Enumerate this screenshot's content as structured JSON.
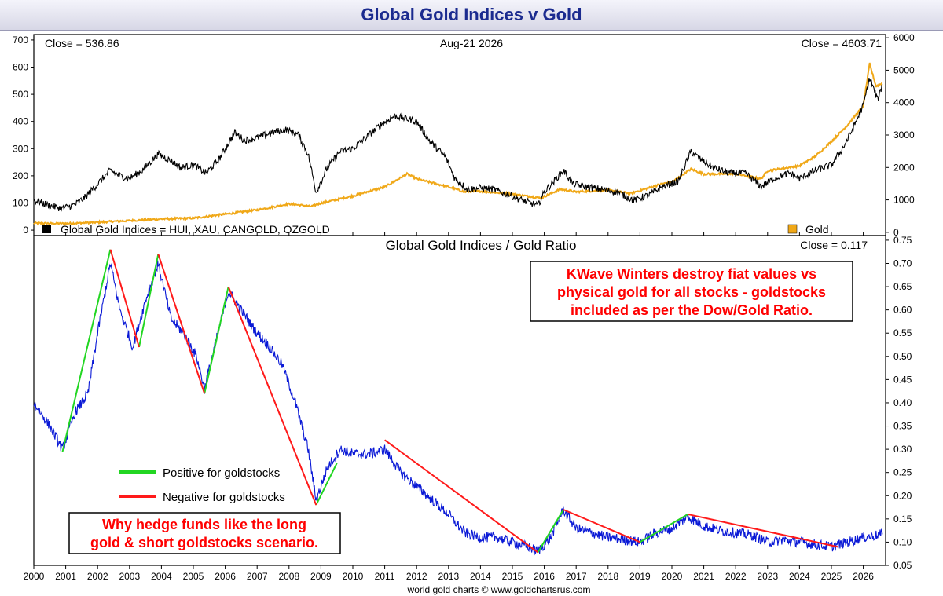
{
  "title": "Global Gold Indices v Gold",
  "footer": "world gold charts © www.goldchartsrus.com",
  "colors": {
    "indices": "#000000",
    "gold": "#f0a818",
    "ratio": "#0a19d6",
    "positive": "#22d622",
    "negative": "#ff1a1a",
    "title": "#1b2b8f",
    "annotation": "#ff0000"
  },
  "top_panel": {
    "close_left": "Close = 536.86",
    "date": "Aug-21  2026",
    "close_right": "Close = 4603.71",
    "legend_indices": "Global Gold Indices = HUI, XAU, CANGOLD, OZGOLD",
    "legend_gold": "Gold"
  },
  "bottom_panel": {
    "title": "Global Gold Indices  /  Gold Ratio",
    "close": "Close = 0.117",
    "annotation_top": [
      "KWave Winters destroy fiat values vs",
      "physical gold for all stocks - goldstocks",
      "included as per the Dow/Gold Ratio."
    ],
    "annotation_bottom": [
      "Why hedge funds like the long",
      "gold & short goldstocks scenario."
    ],
    "legend_positive": "Positive for goldstocks",
    "legend_negative": "Negative for goldstocks"
  },
  "chart_data": [
    {
      "type": "line",
      "title": "Global Gold Indices v Gold",
      "x_axis": {
        "range": [
          2000,
          2026.7
        ],
        "ticks": [
          "2000",
          "2001",
          "2002",
          "2003",
          "2004",
          "2005",
          "2006",
          "2007",
          "2008",
          "2009",
          "2010",
          "2011",
          "2012",
          "2013",
          "2014",
          "2015",
          "2016",
          "2017",
          "2018",
          "2019",
          "2020",
          "2021",
          "2022",
          "2023",
          "2024",
          "2025",
          "2026"
        ]
      },
      "y_left": {
        "range": [
          -20,
          720
        ],
        "ticks": [
          0,
          100,
          200,
          300,
          400,
          500,
          600,
          700
        ]
      },
      "y_right": {
        "range": [
          -100,
          6100
        ],
        "ticks": [
          0,
          1000,
          2000,
          3000,
          4000,
          5000,
          6000
        ]
      },
      "series": [
        {
          "name": "Global Gold Indices = HUI, XAU, CANGOLD, OZGOLD",
          "axis": "left",
          "points": [
            [
              2000,
              110
            ],
            [
              2000.5,
              90
            ],
            [
              2000.9,
              80
            ],
            [
              2001.3,
              95
            ],
            [
              2001.6,
              120
            ],
            [
              2002.0,
              170
            ],
            [
              2002.4,
              220
            ],
            [
              2002.7,
              200
            ],
            [
              2003.0,
              190
            ],
            [
              2003.4,
              220
            ],
            [
              2003.9,
              280
            ],
            [
              2004.3,
              255
            ],
            [
              2004.6,
              230
            ],
            [
              2005.0,
              240
            ],
            [
              2005.4,
              210
            ],
            [
              2005.8,
              260
            ],
            [
              2006.0,
              300
            ],
            [
              2006.3,
              360
            ],
            [
              2006.6,
              330
            ],
            [
              2007.0,
              340
            ],
            [
              2007.5,
              360
            ],
            [
              2007.9,
              370
            ],
            [
              2008.3,
              350
            ],
            [
              2008.6,
              280
            ],
            [
              2008.85,
              140
            ],
            [
              2009.2,
              230
            ],
            [
              2009.6,
              290
            ],
            [
              2010.0,
              300
            ],
            [
              2010.4,
              340
            ],
            [
              2010.9,
              390
            ],
            [
              2011.3,
              420
            ],
            [
              2011.7,
              410
            ],
            [
              2012.0,
              400
            ],
            [
              2012.4,
              330
            ],
            [
              2012.9,
              270
            ],
            [
              2013.2,
              190
            ],
            [
              2013.6,
              150
            ],
            [
              2014.0,
              155
            ],
            [
              2014.4,
              150
            ],
            [
              2014.9,
              130
            ],
            [
              2015.3,
              110
            ],
            [
              2015.8,
              90
            ],
            [
              2016.0,
              140
            ],
            [
              2016.3,
              180
            ],
            [
              2016.6,
              220
            ],
            [
              2016.9,
              170
            ],
            [
              2017.3,
              160
            ],
            [
              2017.8,
              150
            ],
            [
              2018.3,
              140
            ],
            [
              2018.8,
              110
            ],
            [
              2019.3,
              130
            ],
            [
              2019.7,
              160
            ],
            [
              2020.2,
              180
            ],
            [
              2020.6,
              290
            ],
            [
              2020.9,
              260
            ],
            [
              2021.3,
              230
            ],
            [
              2021.8,
              210
            ],
            [
              2022.3,
              210
            ],
            [
              2022.8,
              160
            ],
            [
              2023.2,
              190
            ],
            [
              2023.7,
              210
            ],
            [
              2024.0,
              190
            ],
            [
              2024.5,
              220
            ],
            [
              2025.0,
              240
            ],
            [
              2025.4,
              310
            ],
            [
              2025.7,
              380
            ],
            [
              2026.0,
              460
            ],
            [
              2026.2,
              560
            ],
            [
              2026.45,
              480
            ],
            [
              2026.6,
              536.86
            ]
          ]
        },
        {
          "name": "Gold",
          "axis": "right",
          "points": [
            [
              2000,
              280
            ],
            [
              2001,
              270
            ],
            [
              2002,
              310
            ],
            [
              2003,
              360
            ],
            [
              2004,
              410
            ],
            [
              2005,
              440
            ],
            [
              2006,
              560
            ],
            [
              2007,
              690
            ],
            [
              2008,
              880
            ],
            [
              2008.7,
              800
            ],
            [
              2009,
              900
            ],
            [
              2010,
              1120
            ],
            [
              2011,
              1400
            ],
            [
              2011.7,
              1800
            ],
            [
              2012,
              1650
            ],
            [
              2013,
              1400
            ],
            [
              2013.5,
              1250
            ],
            [
              2014,
              1270
            ],
            [
              2015,
              1180
            ],
            [
              2015.9,
              1060
            ],
            [
              2016.5,
              1330
            ],
            [
              2017,
              1250
            ],
            [
              2018,
              1300
            ],
            [
              2018.7,
              1200
            ],
            [
              2019,
              1290
            ],
            [
              2019.7,
              1500
            ],
            [
              2020,
              1550
            ],
            [
              2020.6,
              1950
            ],
            [
              2021,
              1800
            ],
            [
              2022,
              1800
            ],
            [
              2022.8,
              1650
            ],
            [
              2023,
              1900
            ],
            [
              2024,
              2050
            ],
            [
              2024.5,
              2350
            ],
            [
              2025,
              2800
            ],
            [
              2025.5,
              3300
            ],
            [
              2026,
              3900
            ],
            [
              2026.2,
              5200
            ],
            [
              2026.4,
              4500
            ],
            [
              2026.6,
              4603.71
            ]
          ]
        }
      ]
    },
    {
      "type": "line",
      "title": "Global Gold Indices  /  Gold Ratio",
      "x_axis": {
        "range": [
          2000,
          2026.7
        ]
      },
      "y_right": {
        "range": [
          0.05,
          0.76
        ],
        "ticks": [
          0.05,
          0.1,
          0.15,
          0.2,
          0.25,
          0.3,
          0.35,
          0.4,
          0.45,
          0.5,
          0.55,
          0.6,
          0.65,
          0.7,
          0.75
        ]
      },
      "series": [
        {
          "name": "Global Gold Indices / Gold Ratio",
          "points": [
            [
              2000,
              0.4
            ],
            [
              2000.5,
              0.35
            ],
            [
              2000.9,
              0.3
            ],
            [
              2001.3,
              0.38
            ],
            [
              2001.7,
              0.42
            ],
            [
              2002.0,
              0.55
            ],
            [
              2002.4,
              0.7
            ],
            [
              2002.7,
              0.6
            ],
            [
              2003.1,
              0.52
            ],
            [
              2003.5,
              0.62
            ],
            [
              2003.9,
              0.7
            ],
            [
              2004.3,
              0.58
            ],
            [
              2004.7,
              0.55
            ],
            [
              2005.1,
              0.5
            ],
            [
              2005.35,
              0.43
            ],
            [
              2005.7,
              0.53
            ],
            [
              2006.1,
              0.64
            ],
            [
              2006.5,
              0.6
            ],
            [
              2007.0,
              0.55
            ],
            [
              2007.4,
              0.52
            ],
            [
              2007.8,
              0.48
            ],
            [
              2008.2,
              0.4
            ],
            [
              2008.6,
              0.3
            ],
            [
              2008.85,
              0.19
            ],
            [
              2009.2,
              0.26
            ],
            [
              2009.6,
              0.3
            ],
            [
              2010.0,
              0.29
            ],
            [
              2010.5,
              0.29
            ],
            [
              2011.0,
              0.3
            ],
            [
              2011.5,
              0.25
            ],
            [
              2012.0,
              0.22
            ],
            [
              2012.5,
              0.19
            ],
            [
              2013.0,
              0.16
            ],
            [
              2013.5,
              0.12
            ],
            [
              2014.0,
              0.11
            ],
            [
              2014.5,
              0.11
            ],
            [
              2015.0,
              0.1
            ],
            [
              2015.5,
              0.09
            ],
            [
              2015.8,
              0.08
            ],
            [
              2016.2,
              0.11
            ],
            [
              2016.6,
              0.17
            ],
            [
              2017.0,
              0.13
            ],
            [
              2017.5,
              0.12
            ],
            [
              2018.0,
              0.11
            ],
            [
              2018.5,
              0.105
            ],
            [
              2019.0,
              0.1
            ],
            [
              2019.5,
              0.12
            ],
            [
              2020.0,
              0.13
            ],
            [
              2020.5,
              0.155
            ],
            [
              2021.0,
              0.135
            ],
            [
              2021.5,
              0.125
            ],
            [
              2022.0,
              0.12
            ],
            [
              2022.5,
              0.115
            ],
            [
              2023.0,
              0.1
            ],
            [
              2023.5,
              0.105
            ],
            [
              2024.0,
              0.1
            ],
            [
              2024.5,
              0.095
            ],
            [
              2025.0,
              0.09
            ],
            [
              2025.5,
              0.1
            ],
            [
              2026.0,
              0.11
            ],
            [
              2026.6,
              0.117
            ]
          ]
        },
        {
          "name": "Positive for goldstocks",
          "segments": [
            [
              [
                2000.9,
                0.295
              ],
              [
                2002.4,
                0.73
              ]
            ],
            [
              [
                2003.3,
                0.52
              ],
              [
                2003.9,
                0.72
              ]
            ],
            [
              [
                2005.35,
                0.42
              ],
              [
                2006.1,
                0.65
              ]
            ],
            [
              [
                2008.85,
                0.18
              ],
              [
                2009.5,
                0.27
              ]
            ],
            [
              [
                2015.8,
                0.078
              ],
              [
                2016.6,
                0.17
              ]
            ],
            [
              [
                2019.0,
                0.1
              ],
              [
                2020.5,
                0.16
              ]
            ]
          ]
        },
        {
          "name": "Negative for goldstocks",
          "segments": [
            [
              [
                2002.4,
                0.73
              ],
              [
                2003.3,
                0.52
              ]
            ],
            [
              [
                2003.9,
                0.72
              ],
              [
                2005.35,
                0.42
              ]
            ],
            [
              [
                2006.1,
                0.65
              ],
              [
                2008.85,
                0.18
              ]
            ],
            [
              [
                2011.0,
                0.32
              ],
              [
                2015.8,
                0.078
              ]
            ],
            [
              [
                2016.6,
                0.17
              ],
              [
                2019.0,
                0.1
              ]
            ],
            [
              [
                2020.5,
                0.16
              ],
              [
                2025.2,
                0.09
              ]
            ]
          ]
        }
      ]
    }
  ]
}
